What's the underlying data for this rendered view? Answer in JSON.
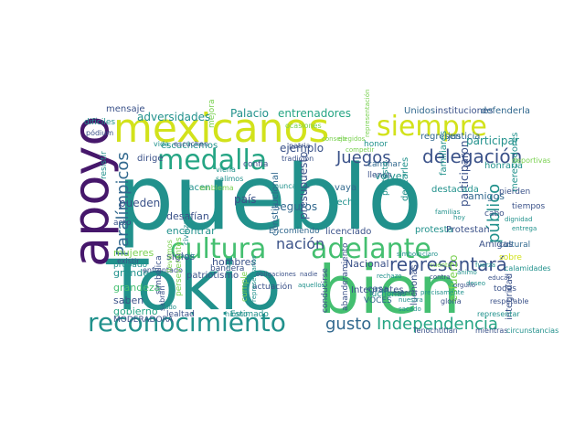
{
  "colors": {
    "background": "#ffffff",
    "purple": "#46176b",
    "indigo": "#3b5289",
    "blue": "#31688e",
    "teal": "#21918c",
    "sea": "#25a584",
    "green": "#44bf70",
    "lime": "#7ad151",
    "yellow": "#d2e21b"
  },
  "words": {
    "pueblo": "pueblo",
    "tokio": "Tokio",
    "bien": "bien",
    "mexicanos": "mexicanos",
    "apoyo": "apoyo",
    "siempre": "siempre",
    "cultura": "cultura",
    "adelante": "adelante",
    "reconocimiento": "reconocimiento",
    "medalla": "medalla",
    "paralimpicos": "Paralímpicos",
    "delegacion": "delegación",
    "representara": "representará",
    "juegos": "Juegos",
    "publico": "público",
    "independencia": "Independencia",
    "gusto": "gusto",
    "nacion": "nación",
    "participar": "participar",
    "palacio": "Palacio",
    "entrenadores": "entrenadores",
    "adversidades": "adversidades",
    "unidos": "Unidos",
    "instituciones": "instituciones",
    "defenderla": "defenderla",
    "ejemplo": "ejemplo",
    "presupuesto": "presupuesto",
    "pueden": "pueden",
    "desafian": "desafían",
    "encontrar": "encontrar",
    "seguros": "seguros",
    "volver": "volver",
    "mujeres": "mujeres",
    "grande": "grande",
    "grandeza": "grandeza",
    "saben": "saben",
    "gobierno": "gobierno",
    "siglos": "siglos",
    "hombres": "hombres",
    "nacional": "Nacional",
    "integrantes": "Integrantes",
    "luchonas_v": "luchonas",
    "esfuerzo": "esfuerzo",
    "participaron": "participaron",
    "destacada": "destacada",
    "amigos": "amigos",
    "honraria": "honraria",
    "regresen": "regresen",
    "justicia": "justicia",
    "pais": "país",
    "constitucional": "constitucional",
    "patriotismo": "patriotismo",
    "escuchemos": "escuchemos",
    "dirige": "dirige",
    "hacen": "hacen",
    "vaya": "vaya",
    "hecho": "hecho",
    "licenciado": "licenciado",
    "encomiendo": "Encomiendo",
    "protesta": "protesta",
    "protestan": "Protestan",
    "amigas": "Amigas",
    "moderadora": "MODERADORA",
    "lealtad": "lealtad",
    "estimado": "Estimado",
    "casa": "casa",
    "voces": "VOCES",
    "luchonas_h": "luchonas",
    "todas": "todas",
    "integridad": "integridad",
    "cultural": "cultural",
    "calamidades": "calamidades",
    "mensaje": "mensaje",
    "dificiles": "difíciles",
    "resistir": "resistir",
    "mejora": "mejora",
    "ocasiones": "ocasiones",
    "patria": "patria",
    "tradicion": "tradición",
    "confia": "confía",
    "honor": "honor",
    "caminar": "caminar",
    "llenos": "llenos",
    "familiares": "familiares",
    "merecedores": "merecedores",
    "tiempos": "tiempos",
    "pierden": "pierden",
    "sobre": "sobre",
    "acto": "acto",
    "probado": "probado",
    "bandera": "bandera",
    "actuacion": "actuación",
    "cumple": "cumple",
    "conducirse": "conducirse",
    "abanderamiento": "abanderamiento",
    "enfrentado": "enfrentado",
    "simbolica": "simbólica",
    "sabran": "sabrán",
    "himno": "himno",
    "tenochtitlan": "Tenochtitlan",
    "mientras": "mientras",
    "circunstancias": "circunstancias",
    "gloria": "gloria",
    "respetable": "respetable",
    "representar": "representar",
    "protesto": "protesto",
    "desearles": "desearles",
    "cabo": "cabo",
    "deportivas": "deportivas",
    "podium": "pódium",
    "existir": "existir",
    "vida": "vida",
    "escuchen": "escuchen",
    "viena": "viena",
    "salimos": "salimos",
    "nunca": "nunca",
    "ir": "ir",
    "llevamos": "llevamos",
    "subir": "subir",
    "perseverantes": "perseverantes",
    "civilizaciones": "civilizaciones",
    "emblema": "emblema",
    "saludo": "saludo",
    "obligaciones": "obligaciones",
    "representarlos": "representarlos",
    "nadie": "nadie",
    "aquellos": "aquellos",
    "contra": "contra",
    "animo": "ánimo",
    "sacado": "sacado",
    "nuestra": "nuestra",
    "esperar": "esperar",
    "claro": "claro",
    "cuenta": "cuenta",
    "precisamente": "precisamente",
    "representacion": "representación",
    "rechazo": "rechazo",
    "simbolo": "símbolo",
    "deseo": "deseo",
    "educar": "educar",
    "dignidad": "dignidad",
    "entrega": "entrega",
    "fuerza": "fuerza",
    "orgullo": "orgullo",
    "hoy": "hoy",
    "elegidos": "elegidos",
    "competir": "competir",
    "consejo": "consejo",
    "familias": "familias"
  }
}
